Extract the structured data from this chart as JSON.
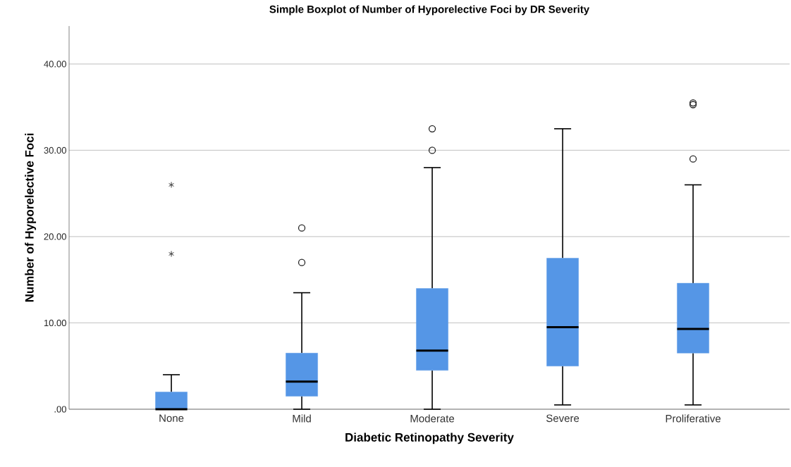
{
  "chart_data": {
    "type": "box",
    "title": "Simple Boxplot of Number of Hyporelective Foci by DR Severity",
    "xlabel": "Diabetic Retinopathy Severity",
    "ylabel": "Number of Hyporelective Foci",
    "categories": [
      "None",
      "Mild",
      "Moderate",
      "Severe",
      "Proliferative"
    ],
    "color": "#5596e6",
    "boxes": [
      {
        "low": 0,
        "q1": 0,
        "median": 0,
        "q3": 2,
        "high": 4,
        "outliers": [
          26,
          18
        ]
      },
      {
        "low": 0,
        "q1": 1.5,
        "median": 3.2,
        "q3": 6.5,
        "high": 13.5,
        "outliers": [
          21,
          17
        ]
      },
      {
        "low": 0,
        "q1": 4.5,
        "median": 6.8,
        "q3": 14,
        "high": 28,
        "outliers": [
          32.5,
          30
        ]
      },
      {
        "low": 0.5,
        "q1": 5,
        "median": 9.5,
        "q3": 17.5,
        "high": 32.5
      },
      {
        "low": 0.5,
        "q1": 6.5,
        "median": 9.3,
        "q3": 14.6,
        "high": 26,
        "outliers": [
          35.5,
          35.3,
          29
        ]
      }
    ],
    "ylim": [
      0,
      44.4
    ],
    "yticks": [
      {
        "value": 0,
        "label": ".00"
      },
      {
        "value": 10,
        "label": "10.00"
      },
      {
        "value": 20,
        "label": "20.00"
      },
      {
        "value": 30,
        "label": "30.00"
      },
      {
        "value": 40,
        "label": "40.00"
      }
    ],
    "grid": "y"
  }
}
